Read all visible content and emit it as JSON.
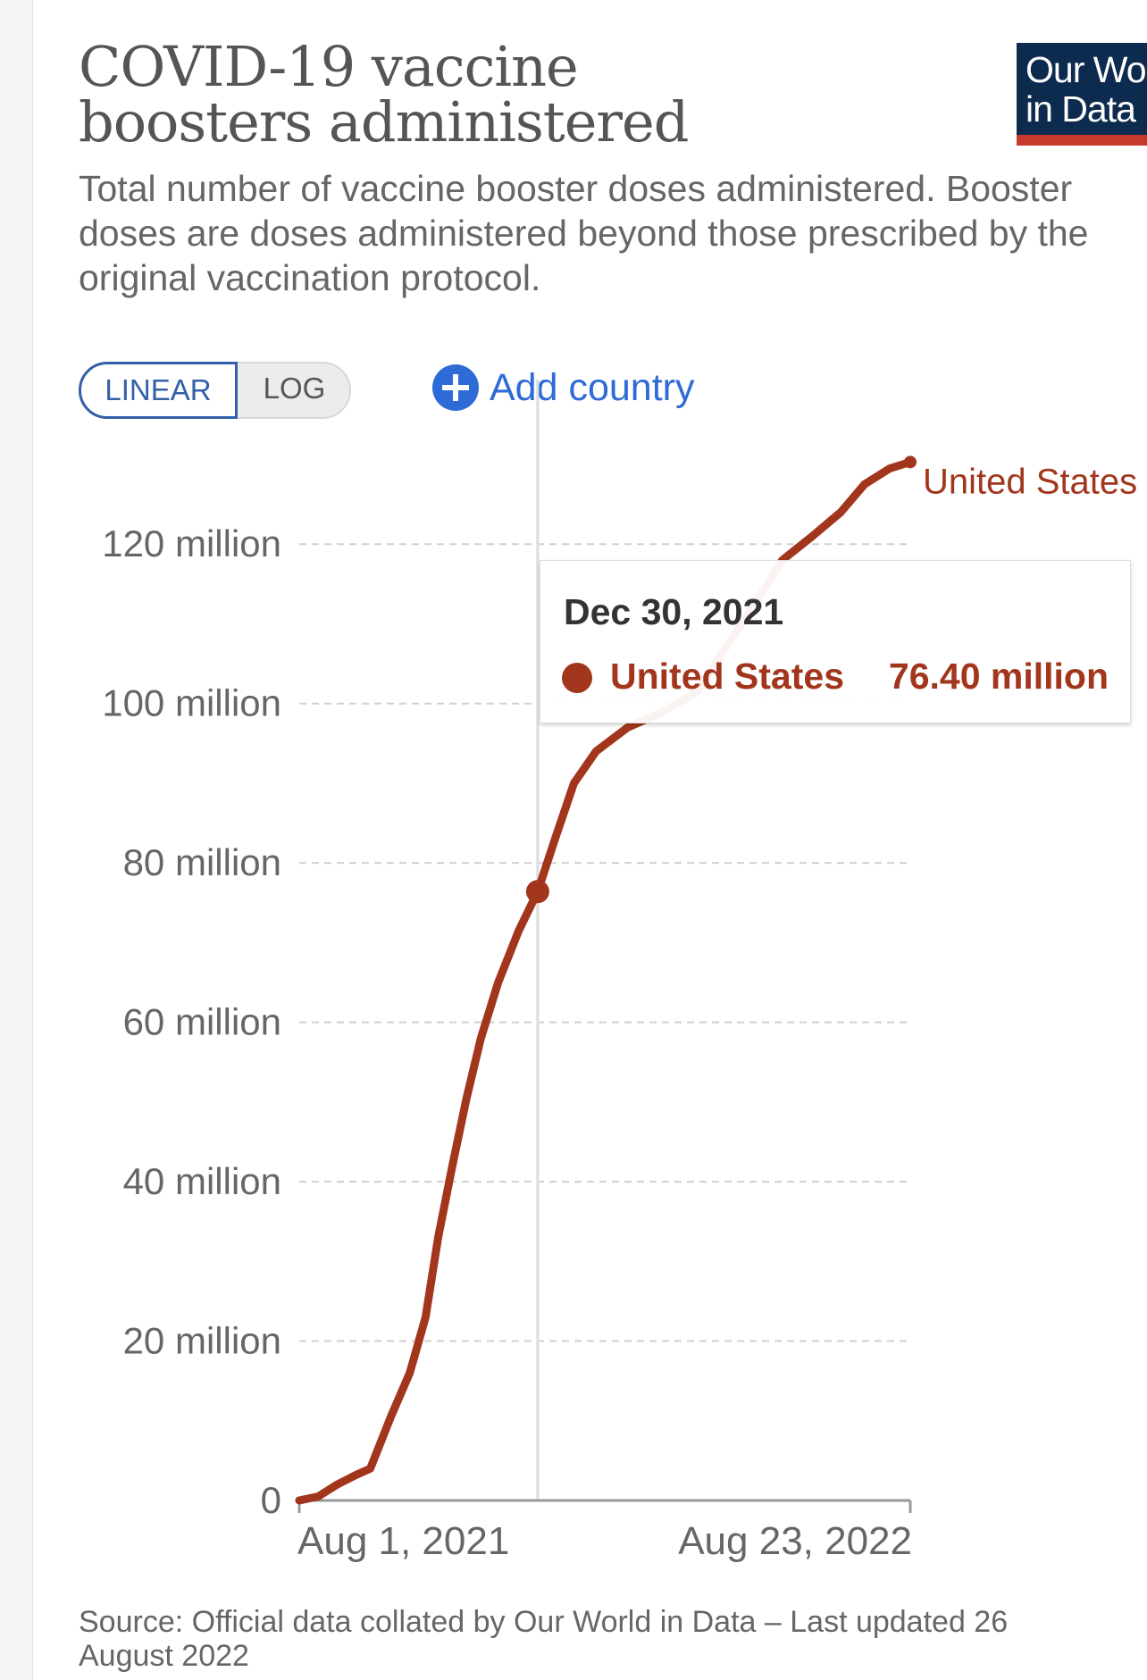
{
  "header": {
    "title": "COVID-19 vaccine boosters administered",
    "subtitle": "Total number of vaccine booster doses administered. Booster doses are doses administered beyond those prescribed by the original vaccination protocol.",
    "logo_text": "Our World\nin Data"
  },
  "controls": {
    "linear_label": "LINEAR",
    "log_label": "LOG",
    "add_country_label": "Add country",
    "selected_scale": "linear"
  },
  "tooltip": {
    "date": "Dec 30, 2021",
    "series": "United States",
    "value": "76.40 million"
  },
  "source": "Source: Official data collated by Our World in Data – Last updated 26 August 2022",
  "colors": {
    "series": "#a2361d",
    "accent": "#3360a9",
    "logo_bg": "#0d2b4e",
    "logo_bar": "#c7392d"
  },
  "chart_data": {
    "type": "line",
    "title": "COVID-19 vaccine boosters administered",
    "xlabel": "",
    "ylabel": "",
    "x_ticks": [
      "Aug 1, 2021",
      "Aug 23, 2022"
    ],
    "y_ticks": [
      "0",
      "20 million",
      "40 million",
      "60 million",
      "80 million",
      "100 million",
      "120 million"
    ],
    "y_tick_values": [
      0,
      20,
      40,
      60,
      80,
      100,
      120
    ],
    "y_unit": "million",
    "ylim": [
      0,
      130
    ],
    "xlim": [
      "2021-08-01",
      "2022-08-23"
    ],
    "grid": "horizontal dashed",
    "series": [
      {
        "name": "United States",
        "end_label": "United States",
        "points": [
          {
            "date": "2021-08-01",
            "value": 0.0
          },
          {
            "date": "2021-08-13",
            "value": 0.5
          },
          {
            "date": "2021-08-25",
            "value": 2.0
          },
          {
            "date": "2021-09-06",
            "value": 3.2
          },
          {
            "date": "2021-09-15",
            "value": 4.0
          },
          {
            "date": "2021-09-28",
            "value": 10.5
          },
          {
            "date": "2021-10-10",
            "value": 16.0
          },
          {
            "date": "2021-10-20",
            "value": 23.0
          },
          {
            "date": "2021-10-28",
            "value": 33.0
          },
          {
            "date": "2021-11-06",
            "value": 42.0
          },
          {
            "date": "2021-11-15",
            "value": 50.5
          },
          {
            "date": "2021-11-24",
            "value": 58.0
          },
          {
            "date": "2021-12-05",
            "value": 65.0
          },
          {
            "date": "2021-12-18",
            "value": 71.5
          },
          {
            "date": "2021-12-30",
            "value": 76.4
          },
          {
            "date": "2022-01-10",
            "value": 83.0
          },
          {
            "date": "2022-01-22",
            "value": 90.0
          },
          {
            "date": "2022-02-05",
            "value": 94.0
          },
          {
            "date": "2022-02-25",
            "value": 97.0
          },
          {
            "date": "2022-03-20",
            "value": 99.0
          },
          {
            "date": "2022-04-10",
            "value": 101.5
          },
          {
            "date": "2022-04-28",
            "value": 107.0
          },
          {
            "date": "2022-05-15",
            "value": 112.0
          },
          {
            "date": "2022-06-03",
            "value": 118.0
          },
          {
            "date": "2022-06-22",
            "value": 121.0
          },
          {
            "date": "2022-07-10",
            "value": 124.0
          },
          {
            "date": "2022-07-25",
            "value": 127.5
          },
          {
            "date": "2022-08-10",
            "value": 129.5
          },
          {
            "date": "2022-08-23",
            "value": 130.3
          }
        ]
      }
    ],
    "highlight": {
      "date": "2021-12-30",
      "value": 76.4
    }
  }
}
